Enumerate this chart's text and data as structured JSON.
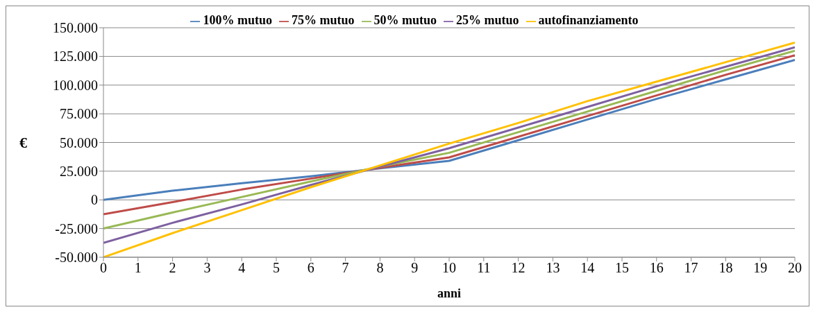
{
  "chart_data": {
    "type": "line",
    "xlabel": "anni",
    "ylabel": "€",
    "x": [
      0,
      2,
      4,
      6,
      8,
      10,
      12,
      14,
      16,
      18,
      20
    ],
    "series": [
      {
        "name": "100% mutuo",
        "color": "#4a7ebb",
        "values": [
          0,
          8000,
          14500,
          20500,
          27500,
          34000,
          52000,
          70000,
          88000,
          105000,
          122000
        ]
      },
      {
        "name": "75% mutuo",
        "color": "#be4b48",
        "values": [
          -12500,
          -2000,
          9000,
          18500,
          28000,
          37000,
          55000,
          73000,
          91000,
          109000,
          126000
        ]
      },
      {
        "name": "50% mutuo",
        "color": "#98b954",
        "values": [
          -25000,
          -11000,
          2500,
          16000,
          29000,
          41000,
          59000,
          77000,
          95000,
          113000,
          130000
        ]
      },
      {
        "name": "25% mutuo",
        "color": "#7d60a0",
        "values": [
          -37500,
          -20000,
          -4000,
          13000,
          29000,
          45000,
          63000,
          81000,
          99000,
          116000,
          133000
        ]
      },
      {
        "name": "autofinanziamento",
        "color": "#ffc000",
        "values": [
          -50000,
          -29000,
          -9000,
          11000,
          30000,
          49000,
          67000,
          86000,
          103000,
          120000,
          137000
        ]
      }
    ],
    "xlim": [
      0,
      20
    ],
    "xticks": [
      0,
      1,
      2,
      3,
      4,
      5,
      6,
      7,
      8,
      9,
      10,
      11,
      12,
      13,
      14,
      15,
      16,
      17,
      18,
      19,
      20
    ],
    "ylim": [
      -50000,
      150000
    ],
    "yticks": [
      {
        "value": -50000,
        "label": "-50.000"
      },
      {
        "value": -25000,
        "label": "-25.000"
      },
      {
        "value": 0,
        "label": "0"
      },
      {
        "value": 25000,
        "label": "25.000"
      },
      {
        "value": 50000,
        "label": "50.000"
      },
      {
        "value": 75000,
        "label": "75.000"
      },
      {
        "value": 100000,
        "label": "100.000"
      },
      {
        "value": 125000,
        "label": "125.000"
      },
      {
        "value": 150000,
        "label": "150.000"
      }
    ],
    "grid": "y",
    "legend": "top",
    "marker": "none",
    "line_style": "solid"
  }
}
